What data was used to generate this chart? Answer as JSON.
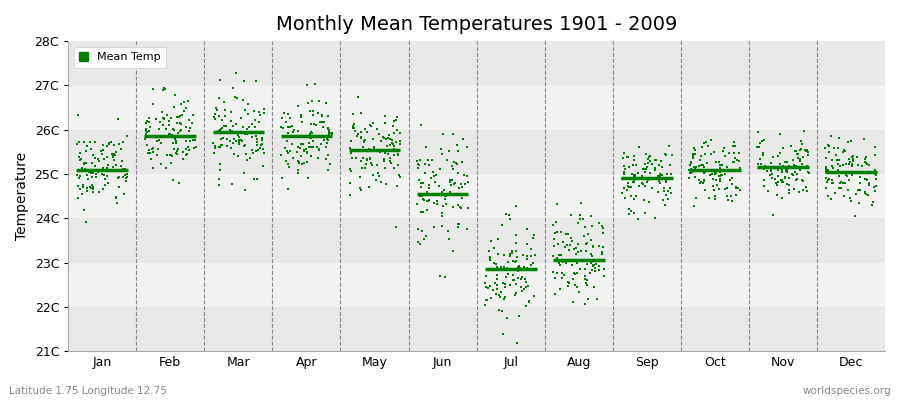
{
  "title": "Monthly Mean Temperatures 1901 - 2009",
  "ylabel": "Temperature",
  "ytick_labels": [
    "21C",
    "22C",
    "23C",
    "24C",
    "25C",
    "26C",
    "27C",
    "28C"
  ],
  "ytick_values": [
    21,
    22,
    23,
    24,
    25,
    26,
    27,
    28
  ],
  "ylim": [
    21,
    28
  ],
  "months": [
    "Jan",
    "Feb",
    "Mar",
    "Apr",
    "May",
    "Jun",
    "Jul",
    "Aug",
    "Sep",
    "Oct",
    "Nov",
    "Dec"
  ],
  "scatter_color": "#008000",
  "mean_line_color": "#008000",
  "bg_dark": "#e8e8e8",
  "bg_light": "#f2f2f2",
  "title_fontsize": 14,
  "bottom_left_text": "Latitude 1.75 Longitude 12.75",
  "bottom_right_text": "worldspecies.org",
  "legend_label": "Mean Temp",
  "month_means": [
    25.1,
    25.85,
    25.95,
    25.85,
    25.55,
    24.55,
    22.85,
    23.05,
    24.9,
    25.1,
    25.15,
    25.05
  ],
  "month_stds": [
    0.45,
    0.5,
    0.48,
    0.45,
    0.5,
    0.65,
    0.58,
    0.5,
    0.4,
    0.38,
    0.38,
    0.38
  ],
  "n_years": 109,
  "seed": 42,
  "point_size": 3,
  "mean_linewidth": 2.5,
  "mean_line_extent": 0.38
}
